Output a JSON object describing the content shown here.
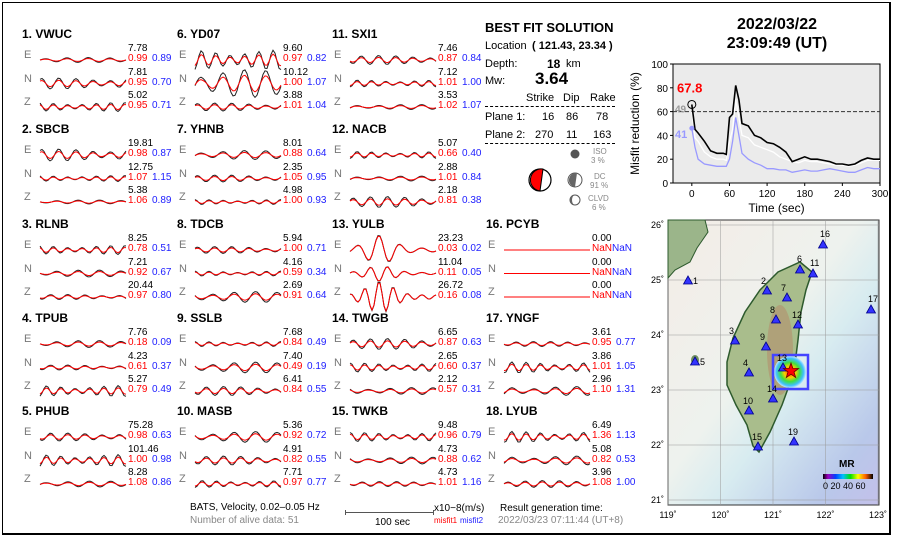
{
  "stations": [
    {
      "num": "1.",
      "name": "VWUC",
      "comps": [
        [
          "E",
          "7.78",
          "0.99",
          "0.89"
        ],
        [
          "N",
          "7.81",
          "0.95",
          "0.70"
        ],
        [
          "Z",
          "5.02",
          "0.95",
          "0.71"
        ]
      ]
    },
    {
      "num": "2.",
      "name": "SBCB",
      "comps": [
        [
          "E",
          "19.81",
          "0.98",
          "0.87"
        ],
        [
          "N",
          "12.75",
          "1.07",
          "1.15"
        ],
        [
          "Z",
          "5.38",
          "1.06",
          "0.89"
        ]
      ]
    },
    {
      "num": "3.",
      "name": "RLNB",
      "comps": [
        [
          "E",
          "8.25",
          "0.78",
          "0.51"
        ],
        [
          "N",
          "7.21",
          "0.92",
          "0.67"
        ],
        [
          "Z",
          "20.44",
          "0.97",
          "0.80"
        ]
      ]
    },
    {
      "num": "4.",
      "name": "TPUB",
      "comps": [
        [
          "E",
          "7.76",
          "0.18",
          "0.09"
        ],
        [
          "N",
          "4.23",
          "0.61",
          "0.37"
        ],
        [
          "Z",
          "5.27",
          "0.79",
          "0.49"
        ]
      ]
    },
    {
      "num": "5.",
      "name": "PHUB",
      "comps": [
        [
          "E",
          "75.28",
          "0.98",
          "0.63"
        ],
        [
          "N",
          "101.46",
          "1.00",
          "0.98"
        ],
        [
          "Z",
          "8.28",
          "1.08",
          "0.86"
        ]
      ]
    },
    {
      "num": "6.",
      "name": "YD07",
      "comps": [
        [
          "E",
          "9.60",
          "0.97",
          "0.82"
        ],
        [
          "N",
          "10.12",
          "1.00",
          "1.07"
        ],
        [
          "Z",
          "3.88",
          "1.01",
          "1.04"
        ]
      ]
    },
    {
      "num": "7.",
      "name": "YHNB",
      "comps": [
        [
          "E",
          "8.01",
          "0.88",
          "0.64"
        ],
        [
          "N",
          "2.35",
          "1.05",
          "0.95"
        ],
        [
          "Z",
          "4.98",
          "1.00",
          "0.93"
        ]
      ]
    },
    {
      "num": "8.",
      "name": "TDCB",
      "comps": [
        [
          "E",
          "5.94",
          "1.00",
          "0.71"
        ],
        [
          "N",
          "4.16",
          "0.59",
          "0.34"
        ],
        [
          "Z",
          "2.69",
          "0.91",
          "0.64"
        ]
      ]
    },
    {
      "num": "9.",
      "name": "SSLB",
      "comps": [
        [
          "E",
          "7.68",
          "0.84",
          "0.49"
        ],
        [
          "N",
          "7.40",
          "0.49",
          "0.19"
        ],
        [
          "Z",
          "6.41",
          "0.84",
          "0.55"
        ]
      ]
    },
    {
      "num": "10.",
      "name": "MASB",
      "comps": [
        [
          "E",
          "5.36",
          "0.92",
          "0.72"
        ],
        [
          "N",
          "4.91",
          "0.82",
          "0.55"
        ],
        [
          "Z",
          "7.71",
          "0.97",
          "0.77"
        ]
      ]
    },
    {
      "num": "11.",
      "name": "SXI1",
      "comps": [
        [
          "E",
          "7.46",
          "0.87",
          "0.84"
        ],
        [
          "N",
          "7.12",
          "1.01",
          "1.00"
        ],
        [
          "Z",
          "3.53",
          "1.02",
          "1.07"
        ]
      ]
    },
    {
      "num": "12.",
      "name": "NACB",
      "comps": [
        [
          "E",
          "5.07",
          "0.66",
          "0.40"
        ],
        [
          "N",
          "2.88",
          "1.01",
          "0.84"
        ],
        [
          "Z",
          "2.18",
          "0.81",
          "0.38"
        ]
      ]
    },
    {
      "num": "13.",
      "name": "YULB",
      "comps": [
        [
          "E",
          "23.23",
          "0.03",
          "0.02"
        ],
        [
          "N",
          "11.04",
          "0.11",
          "0.05"
        ],
        [
          "Z",
          "26.72",
          "0.16",
          "0.08"
        ]
      ]
    },
    {
      "num": "14.",
      "name": "TWGB",
      "comps": [
        [
          "E",
          "6.65",
          "0.87",
          "0.63"
        ],
        [
          "N",
          "2.65",
          "0.60",
          "0.37"
        ],
        [
          "Z",
          "2.12",
          "0.57",
          "0.31"
        ]
      ]
    },
    {
      "num": "15.",
      "name": "TWKB",
      "comps": [
        [
          "E",
          "9.48",
          "0.96",
          "0.79"
        ],
        [
          "N",
          "4.73",
          "0.88",
          "0.62"
        ],
        [
          "Z",
          "4.73",
          "1.01",
          "1.16"
        ]
      ]
    },
    {
      "num": "16.",
      "name": "PCYB",
      "comps": [
        [
          "E",
          "0.00",
          "NaN",
          "NaN"
        ],
        [
          "N",
          "0.00",
          "NaN",
          "NaN"
        ],
        [
          "Z",
          "0.00",
          "NaN",
          "NaN"
        ]
      ]
    },
    {
      "num": "17.",
      "name": "YNGF",
      "comps": [
        [
          "E",
          "3.61",
          "0.95",
          "0.77"
        ],
        [
          "N",
          "3.86",
          "1.01",
          "1.05"
        ],
        [
          "Z",
          "2.96",
          "1.10",
          "1.31"
        ]
      ]
    },
    {
      "num": "18.",
      "name": "LYUB",
      "comps": [
        [
          "E",
          "6.49",
          "1.36",
          "1.13"
        ],
        [
          "N",
          "5.08",
          "0.82",
          "0.53"
        ],
        [
          "Z",
          "3.96",
          "1.08",
          "1.00"
        ]
      ]
    }
  ],
  "footer": {
    "network": "BATS, Velocity, 0.02–0.05 Hz",
    "alive": "Number of alive data: 51",
    "scale_label": "100 sec",
    "units": "x10−8(m/s)",
    "misfit1": "misfit1",
    "misfit2": "misfit2",
    "gen_label": "Result generation time:",
    "gen_time": "2022/03/23 07:11:44  (UT+8)"
  },
  "solution": {
    "title": "BEST FIT SOLUTION",
    "location_label": "Location",
    "location_value": "( 121.43,  23.34 )",
    "depth_label": "Depth:",
    "depth_value": "18",
    "depth_unit": "km",
    "mw_label": "Mw:",
    "mw_value": "3.64",
    "headers": [
      "Strike",
      "Dip",
      "Rake"
    ],
    "plane1": {
      "label": "Plane 1:",
      "strike": "16",
      "dip": "86",
      "rake": "78"
    },
    "plane2": {
      "label": "Plane 2:",
      "strike": "270",
      "dip": "11",
      "rake": "163"
    },
    "iso": {
      "label": "ISO",
      "pct": "3  %"
    },
    "dc": {
      "label": "DC",
      "pct": "91 %"
    },
    "clvd": {
      "label": "CLVD",
      "pct": "6  %"
    },
    "colors": {
      "beachball": "#ff0000"
    }
  },
  "event": {
    "date": "2022/03/22",
    "time": "23:09:49  (UT)"
  },
  "chart_data": {
    "type": "line",
    "xlabel": "Time (sec)",
    "ylabel": "Misfit reduction (%)",
    "xlim": [
      -30,
      300
    ],
    "ylim": [
      0,
      100
    ],
    "xticks": [
      0,
      60,
      120,
      180,
      240,
      300
    ],
    "yticks": [
      0,
      20,
      40,
      60,
      80,
      100
    ],
    "grid": false,
    "reference_line": 60,
    "annotations": {
      "best": "67.8",
      "white_start": "49",
      "blue_start": "41"
    },
    "x": [
      0,
      5,
      10,
      20,
      30,
      40,
      50,
      55,
      60,
      65,
      70,
      75,
      80,
      90,
      100,
      110,
      120,
      130,
      140,
      150,
      160,
      170,
      180,
      190,
      200,
      210,
      220,
      230,
      240,
      250,
      260,
      270,
      280,
      290,
      300
    ],
    "series": [
      {
        "color": "#000000",
        "values": [
          66,
          45,
          42,
          35,
          27,
          25,
          25,
          24,
          55,
          58,
          82,
          70,
          50,
          48,
          40,
          38,
          34,
          33,
          30,
          26,
          18,
          20,
          22,
          20,
          20,
          19,
          18,
          16,
          16,
          15,
          16,
          19,
          21,
          20,
          20
        ]
      },
      {
        "color": "#ffffff",
        "values": [
          60,
          38,
          35,
          26,
          22,
          20,
          20,
          19,
          35,
          45,
          70,
          55,
          40,
          38,
          32,
          30,
          28,
          26,
          22,
          20,
          18,
          17,
          19,
          18,
          18,
          17,
          16,
          15,
          15,
          14,
          15,
          17,
          19,
          19,
          19
        ]
      },
      {
        "color": "#9999ff",
        "values": [
          46,
          30,
          20,
          16,
          15,
          14,
          14,
          14,
          20,
          35,
          55,
          40,
          25,
          20,
          17,
          15,
          12,
          12,
          11,
          11,
          9,
          10,
          11,
          10,
          10,
          11,
          12,
          11,
          10,
          9,
          9,
          11,
          13,
          12,
          12
        ]
      }
    ],
    "background": "#ebebeb"
  },
  "map": {
    "lon_ticks": [
      "119˚",
      "120˚",
      "121˚",
      "122˚",
      "123˚"
    ],
    "lat_ticks": [
      "26˚",
      "25˚",
      "24˚",
      "23˚",
      "22˚",
      "21˚"
    ],
    "stations": [
      "1",
      "2",
      "3",
      "4",
      "5",
      "6",
      "7",
      "8",
      "9",
      "10",
      "11",
      "12",
      "13",
      "14",
      "15",
      "16",
      "17",
      "19"
    ],
    "colorbar_title": "MR",
    "colorbar_ticks": "0 20 40 60",
    "colors": {
      "station": "#3333ff",
      "epicenter": "#ff0000",
      "box": "#4444ff"
    }
  }
}
